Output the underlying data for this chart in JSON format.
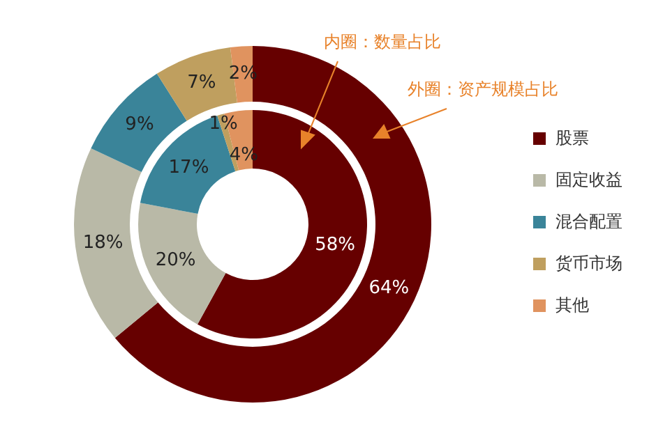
{
  "chart_data": {
    "type": "donut",
    "categories": [
      "股票",
      "固定收益",
      "混合配置",
      "货币市场",
      "其他"
    ],
    "colors": [
      "#660000",
      "#b9b9a7",
      "#3a8499",
      "#bf9f5f",
      "#e0935f"
    ],
    "series": [
      {
        "values": [
          64,
          18,
          9,
          7,
          2
        ],
        "value_labels": [
          "64%",
          "18%",
          "9%",
          "7%",
          "2%"
        ]
      },
      {
        "values": [
          58,
          20,
          17,
          1,
          4
        ],
        "value_labels": [
          "58%",
          "20%",
          "17%",
          "1%",
          "4%"
        ]
      }
    ],
    "annotations": [
      "内圈：数量占比",
      "外圈：资产规模占比"
    ],
    "legend": "right"
  }
}
